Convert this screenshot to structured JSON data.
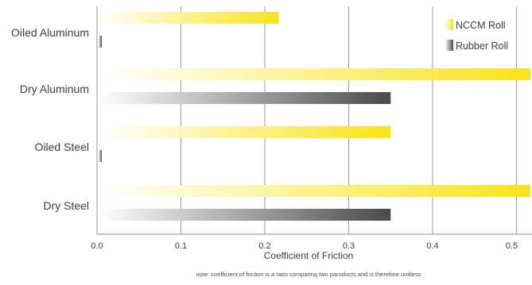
{
  "chart_data": {
    "type": "bar",
    "orientation": "horizontal",
    "categories": [
      "Oiled Aluminum",
      "Dry Aluminum",
      "Oiled Steel",
      "Dry Steel"
    ],
    "series": [
      {
        "name": "NCCM Roll",
        "values": [
          0.2166,
          0.5167,
          0.35,
          0.5167
        ],
        "color": "#f9e31a",
        "gradient_start": "#ffffff"
      },
      {
        "name": "Rubber Roll",
        "values": [
          0.005,
          0.35,
          0.005,
          0.35
        ],
        "color": "#4a4a4a",
        "gradient_start": "#ffffff"
      }
    ],
    "xlabel": "Coefficient of Friction",
    "ylabel": "",
    "xlim": [
      0,
      0.5167
    ],
    "xticks": [
      "0.0",
      "0.1",
      "0.2",
      "0.3",
      "0.4",
      "0.5"
    ],
    "grid": true,
    "legend": "top-right",
    "note": "note: coefficient of friction is a ratio comparing two paroducts and is therefore unitless"
  }
}
